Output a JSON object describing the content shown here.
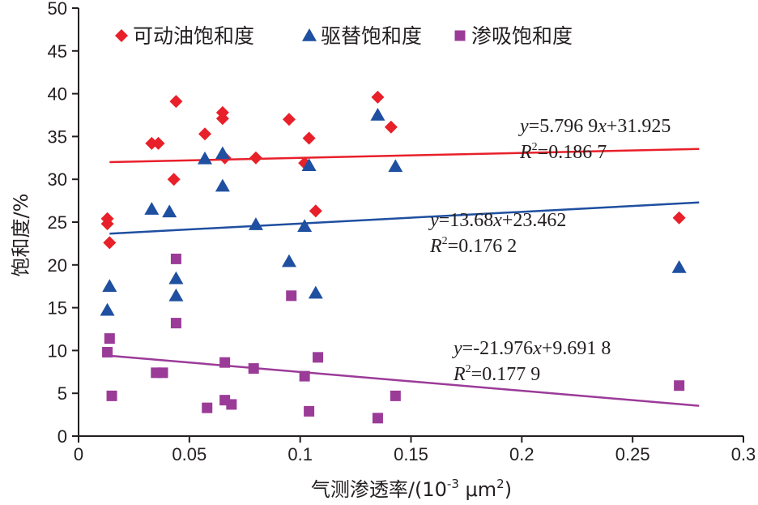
{
  "chart_data": {
    "type": "scatter",
    "xlabel": "气测渗透率/(10",
    "xlabel_exp": "-3",
    "xlabel_unit": " μm",
    "xlabel_unit_exp": "2",
    "xlabel_close": ")",
    "ylabel": "饱和度/%",
    "xlim": [
      0,
      0.3
    ],
    "ylim": [
      0,
      50
    ],
    "xticks": [
      0,
      0.05,
      0.1,
      0.15,
      0.2,
      0.25,
      0.3
    ],
    "xtick_labels": [
      "0",
      "0.05",
      "0.1",
      "0.15",
      "0.2",
      "0.25",
      "0.3"
    ],
    "yticks": [
      0,
      5,
      10,
      15,
      20,
      25,
      30,
      35,
      40,
      45,
      50
    ],
    "ytick_labels": [
      "0",
      "5",
      "10",
      "15",
      "20",
      "25",
      "30",
      "35",
      "40",
      "45",
      "50"
    ],
    "legend_position": "top",
    "series": [
      {
        "name": "可动油饱和度",
        "marker": "diamond",
        "color": "#e8202a",
        "points": [
          [
            0.013,
            25.4
          ],
          [
            0.013,
            24.8
          ],
          [
            0.014,
            22.6
          ],
          [
            0.033,
            34.2
          ],
          [
            0.036,
            34.2
          ],
          [
            0.043,
            30.0
          ],
          [
            0.044,
            39.1
          ],
          [
            0.057,
            35.3
          ],
          [
            0.065,
            37.8
          ],
          [
            0.065,
            37.1
          ],
          [
            0.066,
            32.5
          ],
          [
            0.08,
            32.5
          ],
          [
            0.095,
            37.0
          ],
          [
            0.102,
            31.9
          ],
          [
            0.104,
            34.8
          ],
          [
            0.107,
            26.3
          ],
          [
            0.135,
            39.6
          ],
          [
            0.141,
            36.1
          ],
          [
            0.271,
            25.5
          ]
        ],
        "trendline": {
          "slope": 5.7969,
          "intercept": 31.925,
          "x_range": [
            0.014,
            0.28
          ],
          "equation": "=5.796 9",
          "equation_tail": "+31.925",
          "r2_text": "=0.186 7"
        }
      },
      {
        "name": "驱替饱和度",
        "marker": "triangle",
        "color": "#1f4fa0",
        "points": [
          [
            0.013,
            14.7
          ],
          [
            0.014,
            17.5
          ],
          [
            0.033,
            26.5
          ],
          [
            0.041,
            26.2
          ],
          [
            0.044,
            18.4
          ],
          [
            0.044,
            16.4
          ],
          [
            0.057,
            32.4
          ],
          [
            0.065,
            33.0
          ],
          [
            0.065,
            29.2
          ],
          [
            0.08,
            24.7
          ],
          [
            0.095,
            20.4
          ],
          [
            0.102,
            24.5
          ],
          [
            0.104,
            31.6
          ],
          [
            0.107,
            16.7
          ],
          [
            0.135,
            37.5
          ],
          [
            0.143,
            31.5
          ],
          [
            0.271,
            19.7
          ]
        ],
        "trendline": {
          "slope": 13.68,
          "intercept": 23.462,
          "x_range": [
            0.014,
            0.28
          ],
          "equation": "=13.68",
          "equation_tail": "+23.462",
          "r2_text": "=0.176 2"
        }
      },
      {
        "name": "渗吸饱和度",
        "marker": "square",
        "color": "#9b3b98",
        "points": [
          [
            0.013,
            9.8
          ],
          [
            0.014,
            11.4
          ],
          [
            0.015,
            4.7
          ],
          [
            0.035,
            7.4
          ],
          [
            0.038,
            7.4
          ],
          [
            0.044,
            20.7
          ],
          [
            0.044,
            13.2
          ],
          [
            0.058,
            3.3
          ],
          [
            0.066,
            4.2
          ],
          [
            0.066,
            8.6
          ],
          [
            0.069,
            3.7
          ],
          [
            0.079,
            7.9
          ],
          [
            0.096,
            16.4
          ],
          [
            0.102,
            7.0
          ],
          [
            0.104,
            2.9
          ],
          [
            0.108,
            9.2
          ],
          [
            0.135,
            2.1
          ],
          [
            0.143,
            4.7
          ],
          [
            0.271,
            5.9
          ]
        ],
        "trendline": {
          "slope": -21.976,
          "intercept": 9.6918,
          "x_range": [
            0.014,
            0.28
          ],
          "equation": "=-21.976",
          "equation_tail": "+9.691 8",
          "r2_text": "=0.177 9"
        }
      }
    ],
    "equation_y_var": "y",
    "equation_x_var": "x",
    "r2_label": "R",
    "r2_exp": "2"
  }
}
